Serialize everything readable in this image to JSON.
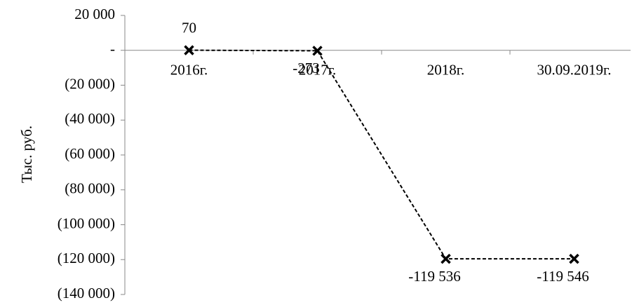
{
  "chart_data": {
    "type": "line",
    "y_label": "Тыс. руб.",
    "categories": [
      "2016г.",
      "2017г.",
      "2018г.",
      "30.09.2019г."
    ],
    "series": [
      {
        "name": null,
        "color": "#000000",
        "values": [
          70,
          -273,
          -119536,
          -119546
        ],
        "value_labels": [
          "70",
          "-273",
          "-119 536",
          "-119 546"
        ]
      }
    ],
    "ylim": [
      -140000,
      20000
    ],
    "yticks": [
      {
        "value": 20000,
        "label": "20 000"
      },
      {
        "value": 0,
        "label": "-"
      },
      {
        "value": -20000,
        "label": "(20 000)"
      },
      {
        "value": -40000,
        "label": "(40 000)"
      },
      {
        "value": -60000,
        "label": "(60 000)"
      },
      {
        "value": -80000,
        "label": "(80 000)"
      },
      {
        "value": -100000,
        "label": "(100 000)"
      },
      {
        "value": -120000,
        "label": "(120 000)"
      },
      {
        "value": -140000,
        "label": "(140 000)"
      }
    ],
    "grid": false
  }
}
